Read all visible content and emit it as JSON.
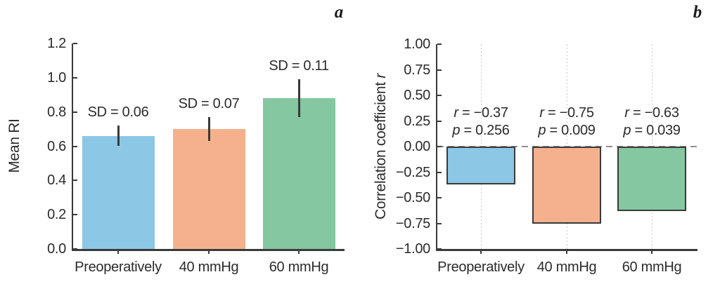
{
  "colors": {
    "axis": "#3a3a3a",
    "text": "#2b2b2b",
    "grid_dotted": "#c9c9c9",
    "zero_dash": "#8f8f8f",
    "bar_blue": "#8cc7e6",
    "bar_orange": "#f5b18d",
    "bar_green": "#84c7a0"
  },
  "chart_data": [
    {
      "type": "bar",
      "panel_label": "a",
      "ylabel": "Mean RI",
      "ylabel_italic_suffix": "",
      "categories": [
        "Preoperatively",
        "40 mmHg",
        "60 mmHg"
      ],
      "values": [
        0.66,
        0.7,
        0.88
      ],
      "error_sd": [
        0.06,
        0.07,
        0.11
      ],
      "bar_annotations": [
        "SD = 0.06",
        "SD = 0.07",
        "SD = 0.11"
      ],
      "bar_colors": [
        "#8cc7e6",
        "#f5b18d",
        "#84c7a0"
      ],
      "ylim": [
        0.0,
        1.2
      ],
      "yticks": [
        1.2,
        1.0,
        0.8,
        0.6,
        0.4,
        0.2,
        0.0
      ],
      "ytick_labels": [
        "1.2",
        "1.0",
        "0.8",
        "0.6",
        "0.4",
        "0.2",
        "0.0"
      ],
      "grid": "none",
      "zero_line": "none",
      "bar_outline": "none",
      "legend": "none"
    },
    {
      "type": "bar",
      "panel_label": "b",
      "ylabel": "Correlation coefficient ",
      "ylabel_italic_suffix": "r",
      "categories": [
        "Preoperatively",
        "40 mmHg",
        "60 mmHg"
      ],
      "values": [
        -0.37,
        -0.75,
        -0.63
      ],
      "annotations": [
        {
          "line1": "r = −0.37",
          "line2": "p = 0.256"
        },
        {
          "line1": "r = −0.75",
          "line2": "p = 0.009"
        },
        {
          "line1": "r = −0.63",
          "line2": "p = 0.039"
        }
      ],
      "bar_colors": [
        "#8cc7e6",
        "#f5b18d",
        "#84c7a0"
      ],
      "ylim": [
        -1.0,
        1.0
      ],
      "yticks": [
        1.0,
        0.75,
        0.5,
        0.25,
        0.0,
        -0.25,
        -0.5,
        -0.75,
        -1.0
      ],
      "ytick_labels": [
        "1.00",
        "0.75",
        "0.50",
        "0.25",
        "0.00",
        "−0.25",
        "−0.50",
        "−0.75",
        "−1.00"
      ],
      "grid": "vertical-dotted",
      "zero_line": "dashed",
      "bar_outline": "#3a3a3a",
      "legend": "none"
    }
  ]
}
